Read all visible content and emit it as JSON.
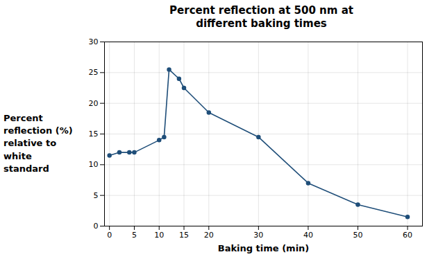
{
  "chart_data": {
    "type": "line",
    "title": "Percent reflection at 500 nm at\ndifferent baking times",
    "xlabel": "Baking time (min)",
    "ylabel": "Percent\nreflection (%)\nrelative to\nwhite\nstandard",
    "x": [
      0,
      2,
      4,
      5,
      10,
      11,
      12,
      14,
      15,
      20,
      30,
      40,
      50,
      60
    ],
    "values": [
      11.5,
      12,
      12,
      12,
      14,
      14.5,
      25.5,
      24,
      22.5,
      18.5,
      14.5,
      7,
      3.5,
      1.5
    ],
    "color": "#1F4E79",
    "marker": "o",
    "xlim": [
      -1,
      63
    ],
    "ylim": [
      0,
      30
    ],
    "xticks": [
      0,
      5,
      10,
      15,
      20,
      30,
      40,
      50,
      60
    ],
    "yticks": [
      0,
      5,
      10,
      15,
      20,
      25,
      30
    ],
    "grid": true
  }
}
